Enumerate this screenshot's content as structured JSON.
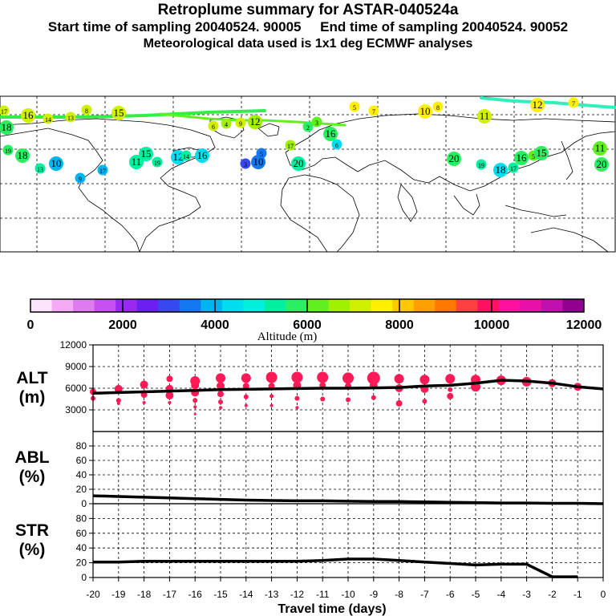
{
  "header": {
    "title": "Retroplume summary for ASTAR-040524a",
    "sampling": "Start time of sampling 20040524. 90005     End time of sampling 20040524. 90052",
    "met": "Meteorological data used is 1x1 deg ECMWF analyses"
  },
  "colors": {
    "line": "#000000",
    "bubble": "#ff1a55",
    "track": "#33ee88"
  },
  "colorbar": {
    "colors": [
      "#fde4fd",
      "#f5aaf5",
      "#e07af0",
      "#c850f0",
      "#9a28f0",
      "#6a20f0",
      "#3848f0",
      "#1478f0",
      "#00b4f0",
      "#00dcf0",
      "#00f0dc",
      "#00f0a0",
      "#28f060",
      "#60f020",
      "#a0f000",
      "#d0f000",
      "#fff000",
      "#ffc800",
      "#ffa000",
      "#ff7800",
      "#ff4040",
      "#ff1060",
      "#ff10a0",
      "#e810a8",
      "#c010b0",
      "#900090"
    ],
    "tick_labels": [
      "0",
      "2000",
      "4000",
      "6000",
      "8000",
      "10000",
      "12000"
    ],
    "label": "Altitude (m)"
  },
  "map": {
    "plume_labels": [
      {
        "t": "17",
        "c": "#d0f000"
      },
      {
        "t": "16",
        "c": "#d0f000"
      },
      {
        "t": "14",
        "c": "#d0f000"
      },
      {
        "t": "13",
        "c": "#d0f000"
      },
      {
        "t": "8",
        "c": "#d0f000"
      },
      {
        "t": "15",
        "c": "#d0f000"
      },
      {
        "t": "5",
        "c": "#fff000"
      },
      {
        "t": "7",
        "c": "#fff000"
      },
      {
        "t": "10",
        "c": "#fff000"
      },
      {
        "t": "8",
        "c": "#fff000"
      },
      {
        "t": "11",
        "c": "#d0f000"
      },
      {
        "t": "12",
        "c": "#fff000"
      },
      {
        "t": "7",
        "c": "#fff000"
      },
      {
        "t": "9",
        "c": "#d0f000"
      },
      {
        "t": "6",
        "c": "#d0f000"
      },
      {
        "t": "4",
        "c": "#a0f000"
      },
      {
        "t": "12",
        "c": "#a0f000"
      },
      {
        "t": "3",
        "c": "#60f020"
      },
      {
        "t": "18",
        "c": "#28f060"
      },
      {
        "t": "19",
        "c": "#28f060"
      },
      {
        "t": "18",
        "c": "#28f060"
      },
      {
        "t": "15",
        "c": "#00f0a0"
      },
      {
        "t": "11",
        "c": "#00f0a0"
      },
      {
        "t": "12",
        "c": "#00dcf0"
      },
      {
        "t": "10",
        "c": "#00b4f0"
      },
      {
        "t": "9",
        "c": "#00b4f0"
      },
      {
        "t": "17",
        "c": "#00b4f0"
      },
      {
        "t": "20",
        "c": "#28f060"
      },
      {
        "t": "13",
        "c": "#00f0a0"
      },
      {
        "t": "16",
        "c": "#00dcf0"
      },
      {
        "t": "14",
        "c": "#00f0a0"
      },
      {
        "t": "19",
        "c": "#00f0a0"
      },
      {
        "t": "3",
        "c": "#3848f0"
      },
      {
        "t": "10",
        "c": "#1478f0"
      },
      {
        "t": "5",
        "c": "#1478f0"
      },
      {
        "t": "6",
        "c": "#00dcf0"
      },
      {
        "t": "16",
        "c": "#28f060"
      },
      {
        "t": "17",
        "c": "#a0f000"
      },
      {
        "t": "2",
        "c": "#28f060"
      },
      {
        "t": "20",
        "c": "#28f060"
      },
      {
        "t": "19",
        "c": "#00f0a0"
      },
      {
        "t": "18",
        "c": "#00dcf0"
      },
      {
        "t": "17",
        "c": "#00f0a0"
      },
      {
        "t": "16",
        "c": "#28f060"
      },
      {
        "t": "5",
        "c": "#60f020"
      },
      {
        "t": "15",
        "c": "#28f060"
      },
      {
        "t": "11",
        "c": "#60f020"
      },
      {
        "t": "20",
        "c": "#00f0a0"
      }
    ]
  },
  "chart_data": [
    {
      "type": "line",
      "panel": "ALT",
      "ylabel": "ALT\n(m)",
      "title": "",
      "ylim": [
        0,
        12000
      ],
      "yticks": [
        "12000",
        "9000",
        "6000",
        "3000"
      ],
      "x": [
        -20,
        -19,
        -18,
        -17,
        -16,
        -15,
        -14,
        -13,
        -12,
        -11,
        -10,
        -9,
        -8,
        -7,
        -6,
        -5,
        -4,
        -3,
        -2,
        -1,
        0
      ],
      "values": [
        5300,
        5400,
        5500,
        5600,
        5700,
        5800,
        5850,
        5900,
        5950,
        6000,
        6000,
        6050,
        6100,
        6300,
        6400,
        6700,
        7100,
        7000,
        6700,
        6200,
        5900
      ],
      "bubbles": [
        {
          "x": -20,
          "y": 5500,
          "s": 4
        },
        {
          "x": -20,
          "y": 4600,
          "s": 3
        },
        {
          "x": -19,
          "y": 5900,
          "s": 5
        },
        {
          "x": -19,
          "y": 4300,
          "s": 3
        },
        {
          "x": -19,
          "y": 3900,
          "s": 2
        },
        {
          "x": -18,
          "y": 6500,
          "s": 5
        },
        {
          "x": -18,
          "y": 5100,
          "s": 4
        },
        {
          "x": -18,
          "y": 4000,
          "s": 2
        },
        {
          "x": -17,
          "y": 7300,
          "s": 4
        },
        {
          "x": -17,
          "y": 5900,
          "s": 5
        },
        {
          "x": -17,
          "y": 5000,
          "s": 5
        },
        {
          "x": -17,
          "y": 4000,
          "s": 2
        },
        {
          "x": -16,
          "y": 7000,
          "s": 6
        },
        {
          "x": -16,
          "y": 6400,
          "s": 5
        },
        {
          "x": -16,
          "y": 5400,
          "s": 5
        },
        {
          "x": -16,
          "y": 4300,
          "s": 3
        },
        {
          "x": -16,
          "y": 3400,
          "s": 2
        },
        {
          "x": -16,
          "y": 2400,
          "s": 1.5
        },
        {
          "x": -15,
          "y": 7400,
          "s": 6
        },
        {
          "x": -15,
          "y": 6300,
          "s": 5
        },
        {
          "x": -15,
          "y": 5200,
          "s": 4
        },
        {
          "x": -15,
          "y": 4100,
          "s": 3
        },
        {
          "x": -15,
          "y": 3300,
          "s": 2
        },
        {
          "x": -14,
          "y": 7400,
          "s": 6
        },
        {
          "x": -14,
          "y": 6300,
          "s": 4
        },
        {
          "x": -14,
          "y": 4800,
          "s": 3
        },
        {
          "x": -14,
          "y": 3600,
          "s": 2
        },
        {
          "x": -13,
          "y": 7500,
          "s": 7
        },
        {
          "x": -13,
          "y": 6300,
          "s": 4
        },
        {
          "x": -13,
          "y": 4900,
          "s": 2.5
        },
        {
          "x": -13,
          "y": 3600,
          "s": 2
        },
        {
          "x": -12,
          "y": 7500,
          "s": 7
        },
        {
          "x": -12,
          "y": 6400,
          "s": 5
        },
        {
          "x": -12,
          "y": 4600,
          "s": 3
        },
        {
          "x": -12,
          "y": 3300,
          "s": 2
        },
        {
          "x": -11,
          "y": 7500,
          "s": 7
        },
        {
          "x": -11,
          "y": 6400,
          "s": 4
        },
        {
          "x": -11,
          "y": 4500,
          "s": 3
        },
        {
          "x": -10,
          "y": 7400,
          "s": 7
        },
        {
          "x": -10,
          "y": 6300,
          "s": 4
        },
        {
          "x": -10,
          "y": 4400,
          "s": 3
        },
        {
          "x": -9,
          "y": 7400,
          "s": 8
        },
        {
          "x": -9,
          "y": 6400,
          "s": 5
        },
        {
          "x": -9,
          "y": 4700,
          "s": 3
        },
        {
          "x": -8,
          "y": 7300,
          "s": 6
        },
        {
          "x": -8,
          "y": 6000,
          "s": 5
        },
        {
          "x": -8,
          "y": 3900,
          "s": 4
        },
        {
          "x": -7,
          "y": 7200,
          "s": 6
        },
        {
          "x": -7,
          "y": 5900,
          "s": 5
        },
        {
          "x": -7,
          "y": 4200,
          "s": 3
        },
        {
          "x": -6,
          "y": 7300,
          "s": 6
        },
        {
          "x": -6,
          "y": 5800,
          "s": 3
        },
        {
          "x": -6,
          "y": 4900,
          "s": 4
        },
        {
          "x": -5,
          "y": 7200,
          "s": 6
        },
        {
          "x": -5,
          "y": 6200,
          "s": 6
        },
        {
          "x": -4,
          "y": 7100,
          "s": 6
        },
        {
          "x": -3,
          "y": 6900,
          "s": 6
        },
        {
          "x": -2,
          "y": 6700,
          "s": 5
        },
        {
          "x": -1,
          "y": 6200,
          "s": 5
        }
      ]
    },
    {
      "type": "line",
      "panel": "ABL",
      "ylabel": "ABL\n(%)",
      "ylim": [
        0,
        100
      ],
      "yticks": [
        "80",
        "60",
        "40",
        "20",
        "0"
      ],
      "x": [
        -20,
        -19,
        -18,
        -17,
        -16,
        -15,
        -14,
        -13,
        -12,
        -11,
        -10,
        -9,
        -8,
        -7,
        -6,
        -5,
        -4,
        -3,
        -2,
        -1,
        0
      ],
      "values": [
        11,
        10,
        9,
        8,
        7,
        6,
        5,
        4.5,
        4,
        4,
        3.5,
        3,
        3,
        2.5,
        2,
        1.5,
        1,
        1,
        0.5,
        0.5,
        0
      ]
    },
    {
      "type": "line",
      "panel": "STR",
      "ylabel": "STR\n(%)",
      "ylim": [
        0,
        100
      ],
      "yticks": [
        "80",
        "60",
        "40",
        "20",
        "0"
      ],
      "x": [
        -20,
        -19,
        -18,
        -17,
        -16,
        -15,
        -14,
        -13,
        -12,
        -11,
        -10,
        -9,
        -8,
        -7,
        -6,
        -5,
        -4,
        -3,
        -2,
        -1
      ],
      "values": [
        21,
        21,
        22,
        22,
        22,
        22,
        22,
        22,
        22,
        23,
        25,
        25,
        23,
        21,
        19,
        17,
        18,
        18,
        1,
        1
      ],
      "xlabel": "Travel time (days)",
      "xticks": [
        "-20",
        "-19",
        "-18",
        "-17",
        "-16",
        "-15",
        "-14",
        "-13",
        "-12",
        "-11",
        "-10",
        "-9",
        "-8",
        "-7",
        "-6",
        "-5",
        "-4",
        "-3",
        "-2",
        "-1",
        "0"
      ]
    }
  ]
}
